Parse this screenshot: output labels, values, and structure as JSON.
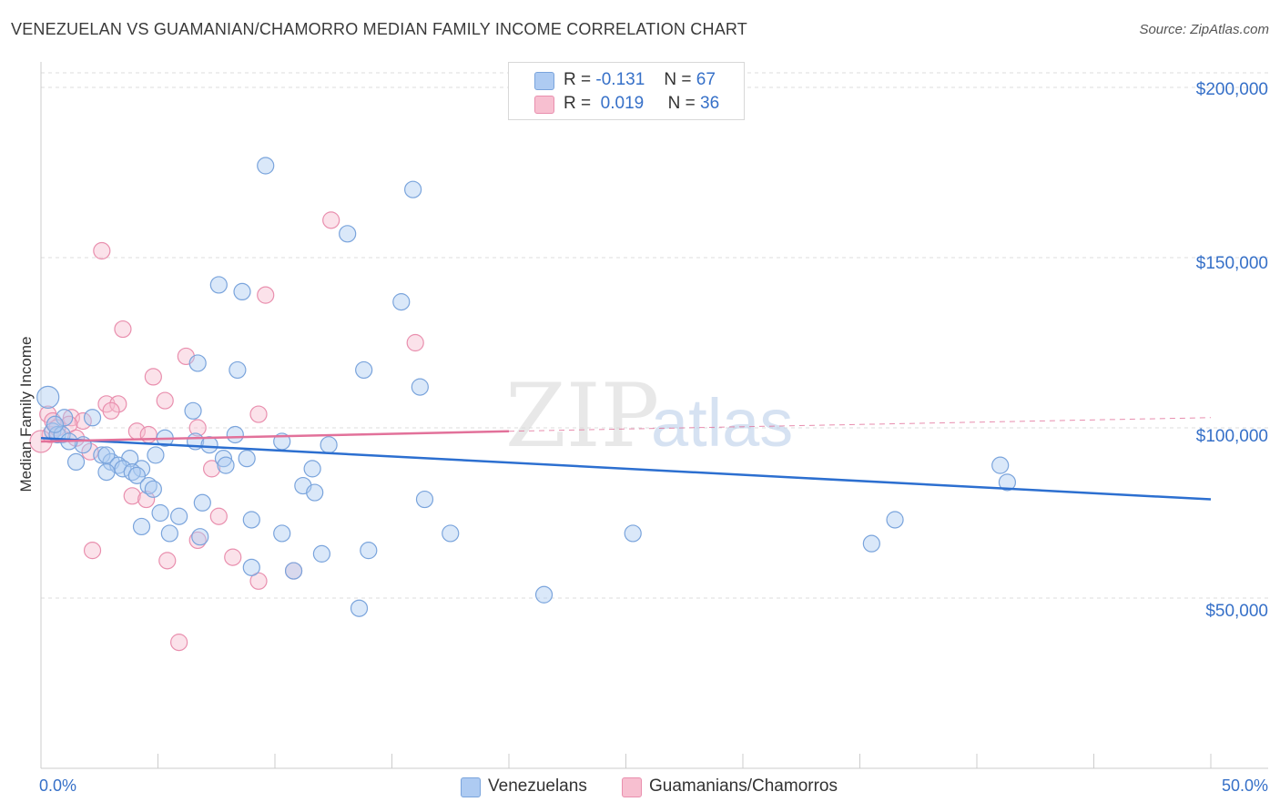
{
  "title": "VENEZUELAN VS GUAMANIAN/CHAMORRO MEDIAN FAMILY INCOME CORRELATION CHART",
  "source": "Source: ZipAtlas.com",
  "legend": {
    "rows": [
      {
        "r_label": "R =",
        "r_value": "-0.131",
        "n_label": "N =",
        "n_value": "67"
      },
      {
        "r_label": "R =",
        "r_value": "0.019",
        "n_label": "N =",
        "n_value": "36"
      }
    ]
  },
  "bottom_legend": [
    "Venezuelans",
    "Guamanians/Chamorros"
  ],
  "colors": {
    "blue_fill": "#aecbf2",
    "blue_stroke": "#7aa4dc",
    "blue_line": "#2c6fd0",
    "pink_fill": "#f7bfd0",
    "pink_stroke": "#e98fae",
    "pink_line": "#e2719a",
    "axis_text": "#3670c8",
    "grid": "#dcdcdc"
  },
  "chart_data": {
    "type": "scatter",
    "title": "VENEZUELAN VS GUAMANIAN/CHAMORRO MEDIAN FAMILY INCOME CORRELATION CHART",
    "xlabel": "",
    "ylabel": "Median Family Income",
    "xlim": [
      0,
      50
    ],
    "ylim": [
      0,
      200000
    ],
    "x_tick_labels": [
      "0.0%",
      "50.0%"
    ],
    "y_ticks": [
      50000,
      100000,
      150000,
      200000
    ],
    "y_tick_labels": [
      "$50,000",
      "$100,000",
      "$150,000",
      "$200,000"
    ],
    "watermark": {
      "a": "ZIP",
      "b": "atlas"
    },
    "series": [
      {
        "name": "Venezuelans",
        "R": -0.131,
        "N": 67,
        "trend": {
          "x": [
            0.0,
            50.0
          ],
          "y": [
            97000,
            79000
          ],
          "dashed_from": null
        },
        "points": [
          [
            9.6,
            177000
          ],
          [
            15.9,
            170000
          ],
          [
            13.1,
            157000
          ],
          [
            7.6,
            142000
          ],
          [
            8.6,
            140000
          ],
          [
            15.4,
            137000
          ],
          [
            6.7,
            119000
          ],
          [
            8.4,
            117000
          ],
          [
            13.8,
            117000
          ],
          [
            16.2,
            112000
          ],
          [
            0.3,
            109000
          ],
          [
            6.5,
            105000
          ],
          [
            1.0,
            103000
          ],
          [
            2.2,
            103000
          ],
          [
            0.5,
            99000
          ],
          [
            0.7,
            98000
          ],
          [
            1.8,
            95000
          ],
          [
            0.9,
            98000
          ],
          [
            5.3,
            97000
          ],
          [
            6.6,
            96000
          ],
          [
            7.2,
            95000
          ],
          [
            8.3,
            98000
          ],
          [
            10.3,
            96000
          ],
          [
            12.3,
            95000
          ],
          [
            2.6,
            92000
          ],
          [
            3.0,
            90000
          ],
          [
            2.8,
            92000
          ],
          [
            3.8,
            91000
          ],
          [
            4.9,
            92000
          ],
          [
            1.5,
            90000
          ],
          [
            7.8,
            91000
          ],
          [
            8.8,
            91000
          ],
          [
            3.3,
            89000
          ],
          [
            3.5,
            88000
          ],
          [
            4.3,
            88000
          ],
          [
            7.9,
            89000
          ],
          [
            11.6,
            88000
          ],
          [
            2.8,
            87000
          ],
          [
            3.9,
            87000
          ],
          [
            4.1,
            86000
          ],
          [
            4.6,
            83000
          ],
          [
            4.8,
            82000
          ],
          [
            11.2,
            83000
          ],
          [
            11.7,
            81000
          ],
          [
            6.9,
            78000
          ],
          [
            16.4,
            79000
          ],
          [
            5.1,
            75000
          ],
          [
            5.9,
            74000
          ],
          [
            9.0,
            73000
          ],
          [
            4.3,
            71000
          ],
          [
            5.5,
            69000
          ],
          [
            6.8,
            68000
          ],
          [
            10.3,
            69000
          ],
          [
            17.5,
            69000
          ],
          [
            25.3,
            69000
          ],
          [
            12.0,
            63000
          ],
          [
            14.0,
            64000
          ],
          [
            35.5,
            66000
          ],
          [
            36.5,
            73000
          ],
          [
            9.0,
            59000
          ],
          [
            10.8,
            58000
          ],
          [
            13.6,
            47000
          ],
          [
            21.5,
            51000
          ],
          [
            41.0,
            89000
          ],
          [
            41.3,
            84000
          ],
          [
            0.6,
            101000
          ],
          [
            1.2,
            96000
          ]
        ]
      },
      {
        "name": "Guamanians/Chamorros",
        "R": 0.019,
        "N": 36,
        "trend": {
          "x": [
            0.0,
            20.0,
            50.0
          ],
          "y": [
            96000,
            99000,
            103000
          ],
          "dashed_from": 20.0
        },
        "points": [
          [
            12.4,
            161000
          ],
          [
            2.6,
            152000
          ],
          [
            9.6,
            139000
          ],
          [
            3.5,
            129000
          ],
          [
            16.0,
            125000
          ],
          [
            6.2,
            121000
          ],
          [
            4.8,
            115000
          ],
          [
            5.3,
            108000
          ],
          [
            2.8,
            107000
          ],
          [
            3.3,
            107000
          ],
          [
            9.3,
            104000
          ],
          [
            1.3,
            103000
          ],
          [
            0.3,
            104000
          ],
          [
            0.5,
            102000
          ],
          [
            1.8,
            102000
          ],
          [
            3.0,
            105000
          ],
          [
            1.2,
            101000
          ],
          [
            0.4,
            98000
          ],
          [
            0.7,
            100000
          ],
          [
            4.1,
            99000
          ],
          [
            6.7,
            100000
          ],
          [
            4.6,
            98000
          ],
          [
            2.1,
            93000
          ],
          [
            7.3,
            88000
          ],
          [
            3.9,
            80000
          ],
          [
            4.5,
            79000
          ],
          [
            7.6,
            74000
          ],
          [
            6.7,
            67000
          ],
          [
            2.2,
            64000
          ],
          [
            5.4,
            61000
          ],
          [
            8.2,
            62000
          ],
          [
            9.3,
            55000
          ],
          [
            10.8,
            58000
          ],
          [
            5.9,
            37000
          ],
          [
            0.0,
            96000
          ],
          [
            1.5,
            97000
          ]
        ]
      }
    ]
  }
}
